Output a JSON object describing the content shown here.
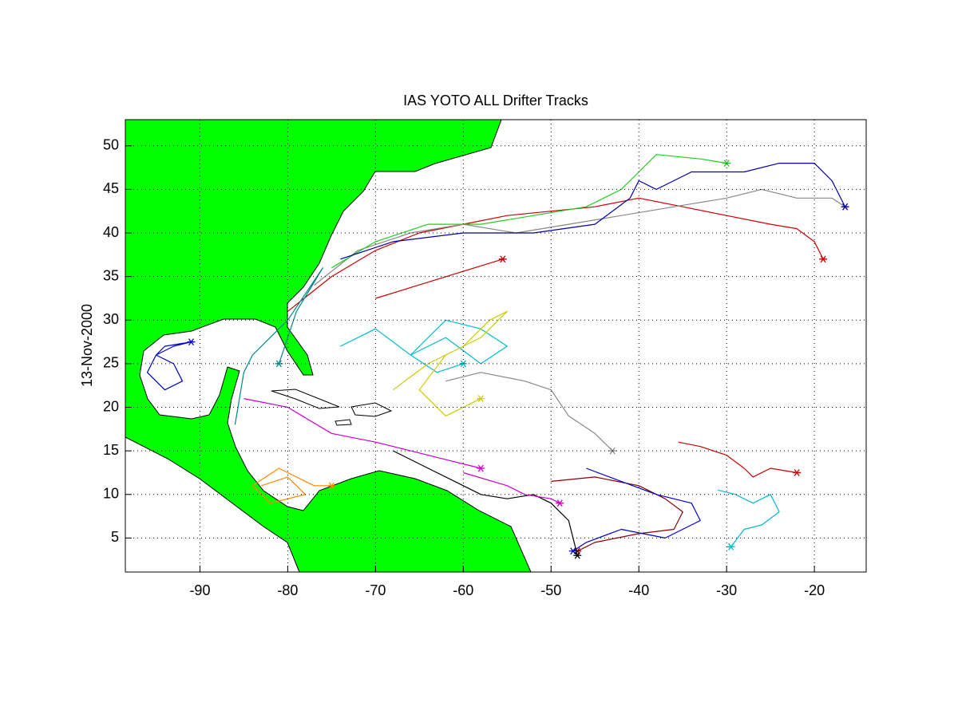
{
  "chart_data": {
    "type": "line",
    "title": "IAS YOTO ALL Drifter Tracks",
    "y_label": "13-Nov-2000",
    "xlim": [
      -98.5,
      -14.1
    ],
    "ylim": [
      1.1,
      53
    ],
    "xticks": [
      -90,
      -80,
      -70,
      -60,
      -50,
      -40,
      -30,
      -20
    ],
    "yticks": [
      5,
      10,
      15,
      20,
      25,
      30,
      35,
      40,
      45,
      50
    ],
    "grid": true,
    "land_color": "#00ff00",
    "series": [
      {
        "color": "#0000cc",
        "x": [
          -91,
          -93,
          -95,
          -96,
          -94,
          -92,
          -93,
          -95,
          -94,
          -91
        ],
        "y": [
          27.5,
          27,
          26,
          24,
          22,
          23,
          25,
          26,
          27,
          27.5
        ]
      },
      {
        "color": "#cc0000",
        "x": [
          -80,
          -75,
          -70,
          -65,
          -60,
          -55,
          -50,
          -45,
          -40,
          -35,
          -30,
          -25,
          -22,
          -20,
          -19
        ],
        "y": [
          31,
          35,
          38,
          40,
          41,
          42,
          42.5,
          43,
          44,
          43,
          42,
          41,
          40.5,
          39,
          37
        ]
      },
      {
        "color": "#888888",
        "x": [
          -77,
          -72,
          -66,
          -60,
          -54,
          -48,
          -42,
          -36,
          -30,
          -26,
          -22,
          -18,
          -16.5
        ],
        "y": [
          34,
          38,
          40,
          41,
          40,
          41,
          42,
          43,
          44,
          45,
          44,
          44,
          43
        ]
      },
      {
        "color": "#22cc22",
        "x": [
          -75,
          -70,
          -64,
          -58,
          -52,
          -46,
          -42,
          -40,
          -38,
          -33,
          -30
        ],
        "y": [
          36,
          39,
          41,
          41,
          42,
          43,
          45,
          47,
          49,
          48.5,
          48
        ]
      },
      {
        "color": "#0000aa",
        "x": [
          -74,
          -68,
          -60,
          -52,
          -45,
          -41,
          -40,
          -38,
          -34,
          -28,
          -24,
          -20,
          -18,
          -16.5
        ],
        "y": [
          37,
          39,
          40,
          40,
          41,
          44,
          46,
          45,
          47,
          47,
          48,
          48,
          46,
          43
        ]
      },
      {
        "color": "#00bbcc",
        "x": [
          -74,
          -70,
          -66,
          -62,
          -58,
          -55,
          -58,
          -62,
          -66,
          -63,
          -60
        ],
        "y": [
          27,
          29,
          26,
          28,
          25,
          27,
          29,
          30,
          26,
          24,
          25
        ]
      },
      {
        "color": "#cccc00",
        "x": [
          -68,
          -64,
          -60,
          -57,
          -55,
          -58,
          -62,
          -65,
          -62,
          -58
        ],
        "y": [
          22,
          25,
          27,
          30,
          31,
          28,
          26,
          22,
          19,
          21
        ]
      },
      {
        "color": "#888888",
        "x": [
          -62,
          -58,
          -53,
          -50,
          -48,
          -45,
          -44,
          -43
        ],
        "y": [
          23,
          24,
          23,
          22,
          19,
          17,
          16,
          15
        ]
      },
      {
        "color": "#cc0000",
        "x": [
          -35.5,
          -33,
          -30,
          -28,
          -27,
          -25,
          -22
        ],
        "y": [
          16,
          15.5,
          14.5,
          13,
          12,
          13,
          12.5
        ]
      },
      {
        "color": "#00bbcc",
        "x": [
          -31,
          -29,
          -27,
          -25,
          -24,
          -26,
          -28,
          -29.5
        ],
        "y": [
          10.5,
          10,
          9,
          10,
          8,
          6.5,
          6,
          4
        ]
      },
      {
        "color": "#880000",
        "x": [
          -50,
          -45,
          -40,
          -37,
          -35,
          -36,
          -40,
          -45,
          -47
        ],
        "y": [
          11.5,
          12,
          11,
          9.5,
          8,
          6,
          5.5,
          4.5,
          3.5
        ]
      },
      {
        "color": "#0000cc",
        "x": [
          -46,
          -42,
          -38,
          -34,
          -33,
          -37,
          -42,
          -46,
          -47.5
        ],
        "y": [
          13,
          11.5,
          10,
          9,
          7,
          5,
          6,
          4.5,
          3.5
        ]
      },
      {
        "color": "#cc00cc",
        "x": [
          -85,
          -80,
          -75,
          -70,
          -66,
          -62,
          -58
        ],
        "y": [
          21,
          20,
          17,
          16,
          15,
          14,
          13
        ]
      },
      {
        "color": "#ff8800",
        "x": [
          -83,
          -80,
          -78,
          -82,
          -84,
          -81,
          -77,
          -75
        ],
        "y": [
          11,
          12,
          10,
          9,
          11,
          13,
          11,
          11
        ]
      },
      {
        "color": "#008888",
        "x": [
          -86,
          -85,
          -84,
          -82,
          -80,
          -78,
          -76,
          -79,
          -81
        ],
        "y": [
          18,
          24,
          26,
          28,
          30,
          33,
          36,
          31,
          25
        ]
      },
      {
        "color": "#000000",
        "x": [
          -68,
          -64,
          -60,
          -58,
          -55,
          -52,
          -50,
          -48,
          -47
        ],
        "y": [
          15,
          13,
          11,
          10,
          9.5,
          10,
          9,
          7,
          3
        ]
      },
      {
        "color": "#cc00cc",
        "x": [
          -60,
          -55,
          -53,
          -50,
          -49
        ],
        "y": [
          12.5,
          11,
          10,
          9.5,
          9
        ]
      },
      {
        "color": "#cc0000",
        "x": [
          -70,
          -55.5
        ],
        "y": [
          32.5,
          37
        ]
      }
    ]
  }
}
